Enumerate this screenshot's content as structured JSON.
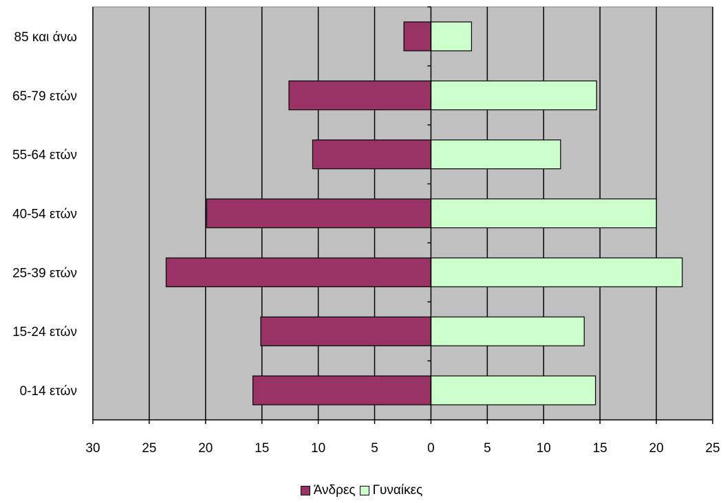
{
  "chart_data": {
    "type": "bar",
    "orientation": "horizontal",
    "layout": "population-pyramid",
    "categories": [
      "85 και άνω",
      "65-79 ετών",
      "55-64 ετών",
      "40-54 ετών",
      "25-39 ετών",
      "15-24 ετών",
      "0-14 ετών"
    ],
    "series": [
      {
        "name": "Άνδρες",
        "color": "#993366",
        "side": "left",
        "values": [
          2.4,
          12.6,
          10.5,
          19.9,
          23.5,
          15.1,
          15.8
        ]
      },
      {
        "name": "Γυναίκες",
        "color": "#ccffcc",
        "side": "right",
        "values": [
          3.6,
          14.7,
          11.5,
          20.0,
          22.3,
          13.6,
          14.6
        ]
      }
    ],
    "xlim": [
      -30,
      25
    ],
    "x_tick_values": [
      -30,
      -25,
      -20,
      -15,
      -10,
      -5,
      0,
      5,
      10,
      15,
      20,
      25
    ],
    "x_tick_labels": [
      "30",
      "25",
      "20",
      "15",
      "10",
      "5",
      "0",
      "5",
      "10",
      "15",
      "20",
      "25"
    ],
    "plot_background": "#c0c0c0",
    "grid": true,
    "legend_position": "bottom",
    "title": "",
    "xlabel": "",
    "ylabel": ""
  }
}
